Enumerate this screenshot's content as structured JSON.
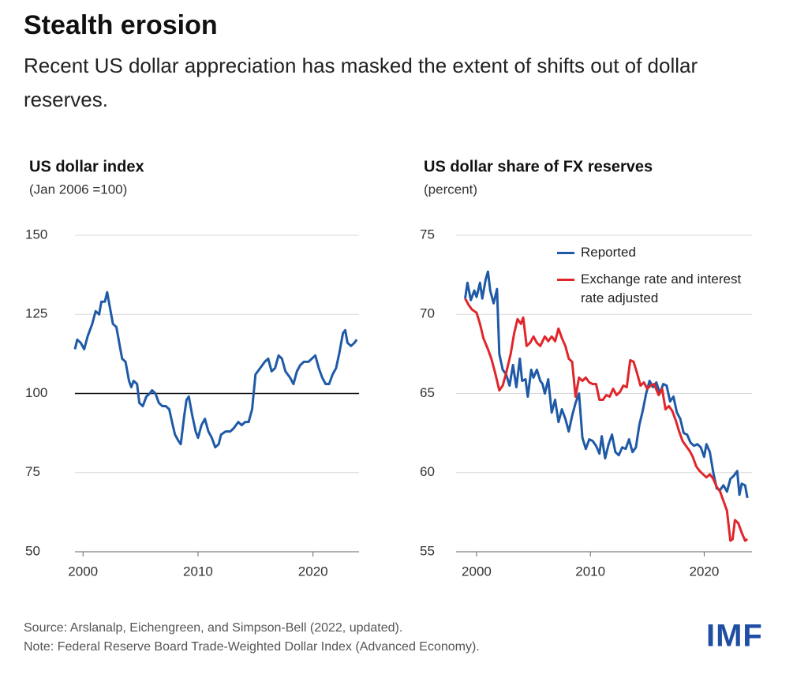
{
  "header": {
    "title": "Stealth erosion",
    "subtitle": "Recent US dollar appreciation has masked the extent of shifts out of dollar reserves."
  },
  "chart_data": [
    {
      "type": "line",
      "title": "US dollar index",
      "subtitle": "(Jan 2006 =100)",
      "color": "#1f5aa6",
      "xlim": [
        1999.3,
        2024
      ],
      "xticks": [
        2000,
        2010,
        2020
      ],
      "ylim": [
        50,
        150
      ],
      "yticks": [
        50,
        75,
        100,
        125,
        150
      ],
      "grid": true,
      "reference_line": 100,
      "x": [
        1999.3,
        1999.5,
        1999.8,
        2000.1,
        2000.4,
        2000.8,
        2001.1,
        2001.4,
        2001.6,
        2001.9,
        2002.1,
        2002.3,
        2002.6,
        2002.9,
        2003.2,
        2003.4,
        2003.7,
        2004.0,
        2004.2,
        2004.4,
        2004.7,
        2004.9,
        2005.2,
        2005.5,
        2005.8,
        2006.0,
        2006.3,
        2006.6,
        2006.9,
        2007.2,
        2007.5,
        2007.8,
        2008.0,
        2008.3,
        2008.5,
        2008.8,
        2009.0,
        2009.2,
        2009.5,
        2009.8,
        2010.0,
        2010.3,
        2010.6,
        2010.9,
        2011.2,
        2011.5,
        2011.8,
        2012.0,
        2012.4,
        2012.8,
        2013.1,
        2013.5,
        2013.8,
        2014.1,
        2014.4,
        2014.7,
        2015.0,
        2015.4,
        2015.8,
        2016.1,
        2016.4,
        2016.7,
        2017.0,
        2017.3,
        2017.6,
        2018.0,
        2018.3,
        2018.6,
        2018.9,
        2019.2,
        2019.6,
        2019.9,
        2020.2,
        2020.5,
        2020.8,
        2021.1,
        2021.4,
        2021.7,
        2022.0,
        2022.3,
        2022.6,
        2022.8,
        2023.0,
        2023.3,
        2023.6,
        2023.8
      ],
      "values": [
        114,
        117,
        116,
        114,
        118,
        122,
        126,
        125,
        129,
        129,
        132,
        128,
        122,
        121,
        115,
        111,
        110,
        104,
        102,
        104,
        103,
        97,
        96,
        99,
        100,
        101,
        100,
        97,
        96,
        96,
        95,
        90,
        87,
        85,
        84,
        93,
        98,
        99,
        93,
        88,
        86,
        90,
        92,
        88,
        86,
        83,
        84,
        87,
        88,
        88,
        89,
        91,
        90,
        91,
        91,
        95,
        106,
        108,
        110,
        111,
        107,
        108,
        112,
        111,
        107,
        105,
        103,
        107,
        109,
        110,
        110,
        111,
        112,
        108,
        105,
        103,
        103,
        106,
        108,
        113,
        119,
        120,
        116,
        115,
        116,
        117
      ]
    },
    {
      "type": "line",
      "title": "US dollar share of FX reserves",
      "subtitle": "(percent)",
      "xlim": [
        1998.2,
        2024.2
      ],
      "xticks": [
        2000,
        2010,
        2020
      ],
      "ylim": [
        55,
        75
      ],
      "yticks": [
        55,
        60,
        65,
        70,
        75
      ],
      "grid": true,
      "legend": "upper right",
      "series": [
        {
          "name": "Reported",
          "color": "#1f5aa6",
          "x": [
            1999.0,
            1999.2,
            1999.5,
            1999.8,
            2000.0,
            2000.3,
            2000.5,
            2000.8,
            2001.0,
            2001.2,
            2001.5,
            2001.8,
            2002.0,
            2002.3,
            2002.6,
            2002.9,
            2003.2,
            2003.5,
            2003.8,
            2004.0,
            2004.3,
            2004.5,
            2004.8,
            2005.0,
            2005.3,
            2005.6,
            2005.8,
            2006.0,
            2006.3,
            2006.6,
            2006.9,
            2007.2,
            2007.5,
            2007.8,
            2008.1,
            2008.4,
            2008.7,
            2009.0,
            2009.3,
            2009.6,
            2009.9,
            2010.2,
            2010.5,
            2010.8,
            2011.0,
            2011.3,
            2011.6,
            2011.9,
            2012.2,
            2012.5,
            2012.8,
            2013.1,
            2013.4,
            2013.7,
            2014.0,
            2014.3,
            2014.6,
            2014.9,
            2015.2,
            2015.5,
            2015.8,
            2016.1,
            2016.4,
            2016.7,
            2017.0,
            2017.3,
            2017.6,
            2017.9,
            2018.2,
            2018.5,
            2018.8,
            2019.1,
            2019.4,
            2019.7,
            2020.0,
            2020.2,
            2020.5,
            2020.8,
            2021.1,
            2021.4,
            2021.7,
            2022.0,
            2022.3,
            2022.6,
            2022.9,
            2023.1,
            2023.3,
            2023.6,
            2023.8
          ],
          "values": [
            71.0,
            72.0,
            70.9,
            71.5,
            71.1,
            72.0,
            71.0,
            72.2,
            72.7,
            71.5,
            70.7,
            71.6,
            67.5,
            66.5,
            66.2,
            65.5,
            66.8,
            65.4,
            67.2,
            65.8,
            65.9,
            64.8,
            66.5,
            66.0,
            66.5,
            65.8,
            65.6,
            65.0,
            65.9,
            63.8,
            64.6,
            63.2,
            64.0,
            63.4,
            62.6,
            63.6,
            64.4,
            65.0,
            62.2,
            61.5,
            62.1,
            62.0,
            61.7,
            61.2,
            62.3,
            60.9,
            61.8,
            62.4,
            61.3,
            61.1,
            61.6,
            61.5,
            62.1,
            61.3,
            61.6,
            63.0,
            63.9,
            65.0,
            65.8,
            65.4,
            65.7,
            65.0,
            65.6,
            65.5,
            64.5,
            64.8,
            63.8,
            63.4,
            62.5,
            62.4,
            61.9,
            61.7,
            61.8,
            61.6,
            61.0,
            61.8,
            61.3,
            60.0,
            59.0,
            58.9,
            59.2,
            58.8,
            59.6,
            59.8,
            60.1,
            58.6,
            59.3,
            59.2,
            58.4
          ]
        },
        {
          "name": "Exchange rate and interest rate adjusted",
          "color": "#e0262b",
          "x": [
            1999.0,
            1999.3,
            1999.6,
            2000.0,
            2000.3,
            2000.6,
            2001.0,
            2001.3,
            2001.6,
            2002.0,
            2002.3,
            2002.6,
            2003.0,
            2003.3,
            2003.6,
            2003.9,
            2004.1,
            2004.4,
            2004.7,
            2005.0,
            2005.3,
            2005.6,
            2006.0,
            2006.3,
            2006.6,
            2006.9,
            2007.2,
            2007.5,
            2007.8,
            2008.1,
            2008.4,
            2008.7,
            2009.0,
            2009.3,
            2009.6,
            2009.9,
            2010.2,
            2010.5,
            2010.8,
            2011.1,
            2011.4,
            2011.7,
            2012.0,
            2012.3,
            2012.6,
            2012.9,
            2013.2,
            2013.5,
            2013.8,
            2014.1,
            2014.4,
            2014.7,
            2015.0,
            2015.3,
            2015.6,
            2016.0,
            2016.3,
            2016.6,
            2016.9,
            2017.2,
            2017.5,
            2017.8,
            2018.1,
            2018.4,
            2018.7,
            2019.0,
            2019.3,
            2019.6,
            2019.9,
            2020.2,
            2020.5,
            2020.8,
            2021.1,
            2021.4,
            2021.7,
            2022.0,
            2022.3,
            2022.5,
            2022.7,
            2023.0,
            2023.3,
            2023.6,
            2023.8
          ],
          "values": [
            71.0,
            70.6,
            70.3,
            70.1,
            69.4,
            68.5,
            67.8,
            67.2,
            66.4,
            65.2,
            65.5,
            66.3,
            67.5,
            68.8,
            69.7,
            69.4,
            69.8,
            68.0,
            68.2,
            68.6,
            68.2,
            68.0,
            68.6,
            68.3,
            68.6,
            68.3,
            69.1,
            68.5,
            68.0,
            67.2,
            67.0,
            64.8,
            66.0,
            65.8,
            66.0,
            65.7,
            65.6,
            65.6,
            64.6,
            64.6,
            64.9,
            64.8,
            65.3,
            64.9,
            65.1,
            65.5,
            65.4,
            67.1,
            67.0,
            66.3,
            65.5,
            65.7,
            65.3,
            65.5,
            65.6,
            64.9,
            65.3,
            64.0,
            64.2,
            63.9,
            63.3,
            62.6,
            62.0,
            61.7,
            61.4,
            61.0,
            60.4,
            60.1,
            59.9,
            59.7,
            59.9,
            59.6,
            59.1,
            58.8,
            58.2,
            57.6,
            55.7,
            55.8,
            57.0,
            56.8,
            56.2,
            55.7,
            55.8
          ]
        }
      ]
    }
  ],
  "footer": {
    "source": "Source: Arslanalp, Eichengreen, and Simpson-Bell (2022, updated).",
    "note": "Note: Federal Reserve Board Trade-Weighted Dollar Index (Advanced Economy).",
    "logo": "IMF"
  }
}
